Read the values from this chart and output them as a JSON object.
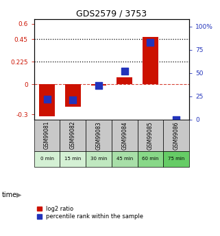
{
  "title": "GDS2579 / 3753",
  "samples": [
    "GSM99081",
    "GSM99082",
    "GSM99083",
    "GSM99084",
    "GSM99085",
    "GSM99086"
  ],
  "time_labels": [
    "0 min",
    "15 min",
    "30 min",
    "45 min",
    "60 min",
    "75 min"
  ],
  "time_colors": [
    "#d4f0d4",
    "#d4f0d4",
    "#c0e8c0",
    "#a8dfa8",
    "#88d888",
    "#66cc66"
  ],
  "log2_ratio": [
    -0.32,
    -0.22,
    -0.01,
    0.07,
    0.47,
    0.0
  ],
  "percentile_rank": [
    22,
    21,
    37,
    52,
    83,
    0
  ],
  "ylim_left": [
    -0.35,
    0.65
  ],
  "ylim_right": [
    0,
    108.33
  ],
  "yticks_left": [
    -0.3,
    0.0,
    0.225,
    0.45,
    0.6
  ],
  "ytick_labels_left": [
    "-0.3",
    "0",
    "0.225",
    "0.45",
    "0.6"
  ],
  "yticks_right": [
    0,
    25,
    50,
    75,
    100
  ],
  "ytick_labels_right": [
    "0",
    "25",
    "50",
    "75",
    "100%"
  ],
  "hlines": [
    0.225,
    0.45
  ],
  "bar_color": "#cc1100",
  "dot_color": "#2233bb",
  "zero_line_color": "#cc1100",
  "bg_color": "#ffffff",
  "plot_bg": "#ffffff",
  "sample_bg": "#c8c8c8",
  "bar_width": 0.6,
  "dot_size": 55,
  "legend_bar_label": "log2 ratio",
  "legend_dot_label": "percentile rank within the sample"
}
